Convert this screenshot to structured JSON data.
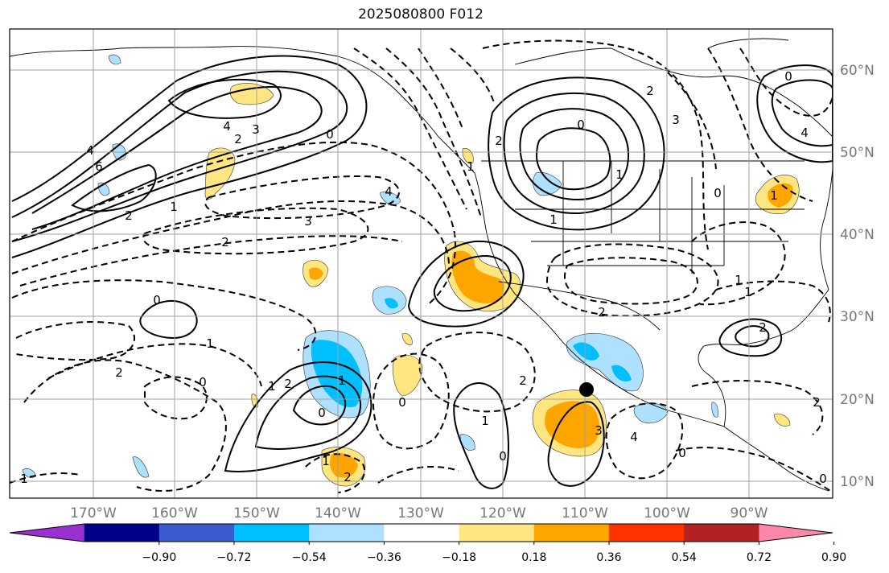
{
  "title": "2025080800 F012",
  "lon_labels": [
    "170°W",
    "160°W",
    "150°W",
    "140°W",
    "130°W",
    "120°W",
    "110°W",
    "100°W",
    "90°W"
  ],
  "lat_labels": [
    "60°N",
    "50°N",
    "40°N",
    "30°N",
    "20°N",
    "10°N"
  ],
  "colorbar": {
    "ticks": [
      "−0.90",
      "−0.72",
      "−0.54",
      "−0.36",
      "−0.18",
      "0.18",
      "0.36",
      "0.54",
      "0.72",
      "0.90"
    ],
    "colors": [
      "#9b30d0",
      "#00008b",
      "#3c5bcf",
      "#00bfff",
      "#aee0ff",
      "#ffffff",
      "#ffe680",
      "#ffa500",
      "#ff3300",
      "#b22222",
      "#ff88aa"
    ]
  },
  "contour_labels": [
    "4",
    "3",
    "2",
    "6",
    "4",
    "1",
    "2",
    "0",
    "3",
    "2",
    "0",
    "1",
    "2",
    "0",
    "4",
    "1",
    "2",
    "1",
    "1",
    "0",
    "2",
    "0",
    "1",
    "2",
    "1",
    "2",
    "3",
    "4",
    "0",
    "1",
    "2",
    "1",
    "0",
    "1",
    "2",
    "0",
    "1",
    "0",
    "2",
    "3",
    "4",
    "0",
    "1",
    "2",
    "0",
    "1"
  ],
  "colors": {
    "contour": "#000000",
    "grid": "#a0a0a0",
    "neg_fill_light": "#aee0ff",
    "neg_fill_mid": "#00bfff",
    "pos_fill_light": "#ffe680",
    "pos_fill_mid": "#ffa500"
  },
  "marker": {
    "name": "black-dot",
    "lon": -110,
    "lat": 21
  }
}
